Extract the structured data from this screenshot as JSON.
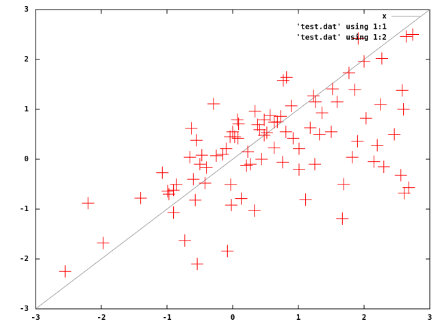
{
  "chart_data": {
    "type": "scatter",
    "xlim": [
      -3,
      3
    ],
    "ylim": [
      -3,
      3
    ],
    "xticks": [
      -3,
      -2,
      -1,
      0,
      1,
      2,
      3
    ],
    "yticks": [
      -3,
      -2,
      -1,
      0,
      1,
      2,
      3
    ],
    "legend": "top-right",
    "series": [
      {
        "name": "x",
        "style": "line",
        "color": "#a0a0a0",
        "x": [
          -3,
          3
        ],
        "values": [
          -3,
          3
        ]
      },
      {
        "name": "'test.dat' using 1:1",
        "style": "points",
        "x": [],
        "values": []
      },
      {
        "name": "'test.dat' using 1:2",
        "style": "points",
        "color": "#ff0000",
        "x": [
          -2.55,
          -2.2,
          -1.97,
          -1.4,
          -1.07,
          -0.99,
          -0.97,
          -0.9,
          -0.86,
          -0.9,
          -0.73,
          -0.54,
          -0.08,
          -0.63,
          -0.55,
          -0.65,
          -0.6,
          -0.57,
          -0.5,
          -0.47,
          -0.4,
          -0.42,
          -0.29,
          -0.25,
          -0.1,
          -0.03,
          -0.02,
          0,
          0.03,
          0.08,
          0.07,
          0.13,
          0.21,
          0.23,
          0.33,
          0.34,
          0.41,
          0.44,
          0.48,
          0.52,
          0.57,
          0.63,
          0.68,
          0.73,
          0.76,
          0.81,
          0.77,
          0.82,
          0.89,
          0.92,
          1.01,
          1.01,
          1.11,
          1.18,
          1.23,
          1.25,
          1.26,
          1.32,
          1.36,
          1.5,
          1.52,
          1.59,
          1.69,
          1.67,
          1.77,
          1.82,
          1.86,
          1.9,
          1.91,
          2.0,
          2.03,
          2.15,
          2.2,
          2.25,
          2.27,
          2.3,
          2.46,
          2.56,
          2.58,
          2.6,
          2.61,
          2.64,
          2.68,
          2.74,
          0.38,
          0.48,
          0.63,
          -0.04,
          -0.15,
          0.27,
          0.09
        ],
        "values": [
          -2.25,
          -0.88,
          -1.68,
          -0.78,
          -0.27,
          -0.64,
          -0.7,
          -0.62,
          -0.51,
          -1.07,
          -1.63,
          -2.1,
          -1.84,
          0.62,
          0.38,
          0.04,
          -0.4,
          -0.82,
          -0.1,
          0.08,
          -0.17,
          -0.48,
          1.11,
          0.07,
          0.21,
          -0.51,
          -0.92,
          0.55,
          0.45,
          0.42,
          0.79,
          -0.79,
          -0.13,
          0.15,
          -1.03,
          0.96,
          0.59,
          0.0,
          0.79,
          0.53,
          0.88,
          0.23,
          0.75,
          0.86,
          -0.06,
          0.55,
          1.58,
          1.64,
          1.07,
          0.42,
          0.21,
          -0.21,
          -0.81,
          0.63,
          1.27,
          -0.1,
          1.15,
          0.5,
          0.93,
          0.55,
          1.41,
          1.15,
          -0.5,
          -1.19,
          1.73,
          0.04,
          1.39,
          0.36,
          2.42,
          1.96,
          0.82,
          -0.05,
          0.28,
          1.1,
          2.02,
          -0.15,
          0.5,
          -0.32,
          1.38,
          1.0,
          -0.68,
          2.46,
          -0.57,
          2.5,
          0.69,
          0.48,
          0.74,
          0.45,
          0.1,
          -0.1,
          0.71
        ]
      }
    ]
  }
}
